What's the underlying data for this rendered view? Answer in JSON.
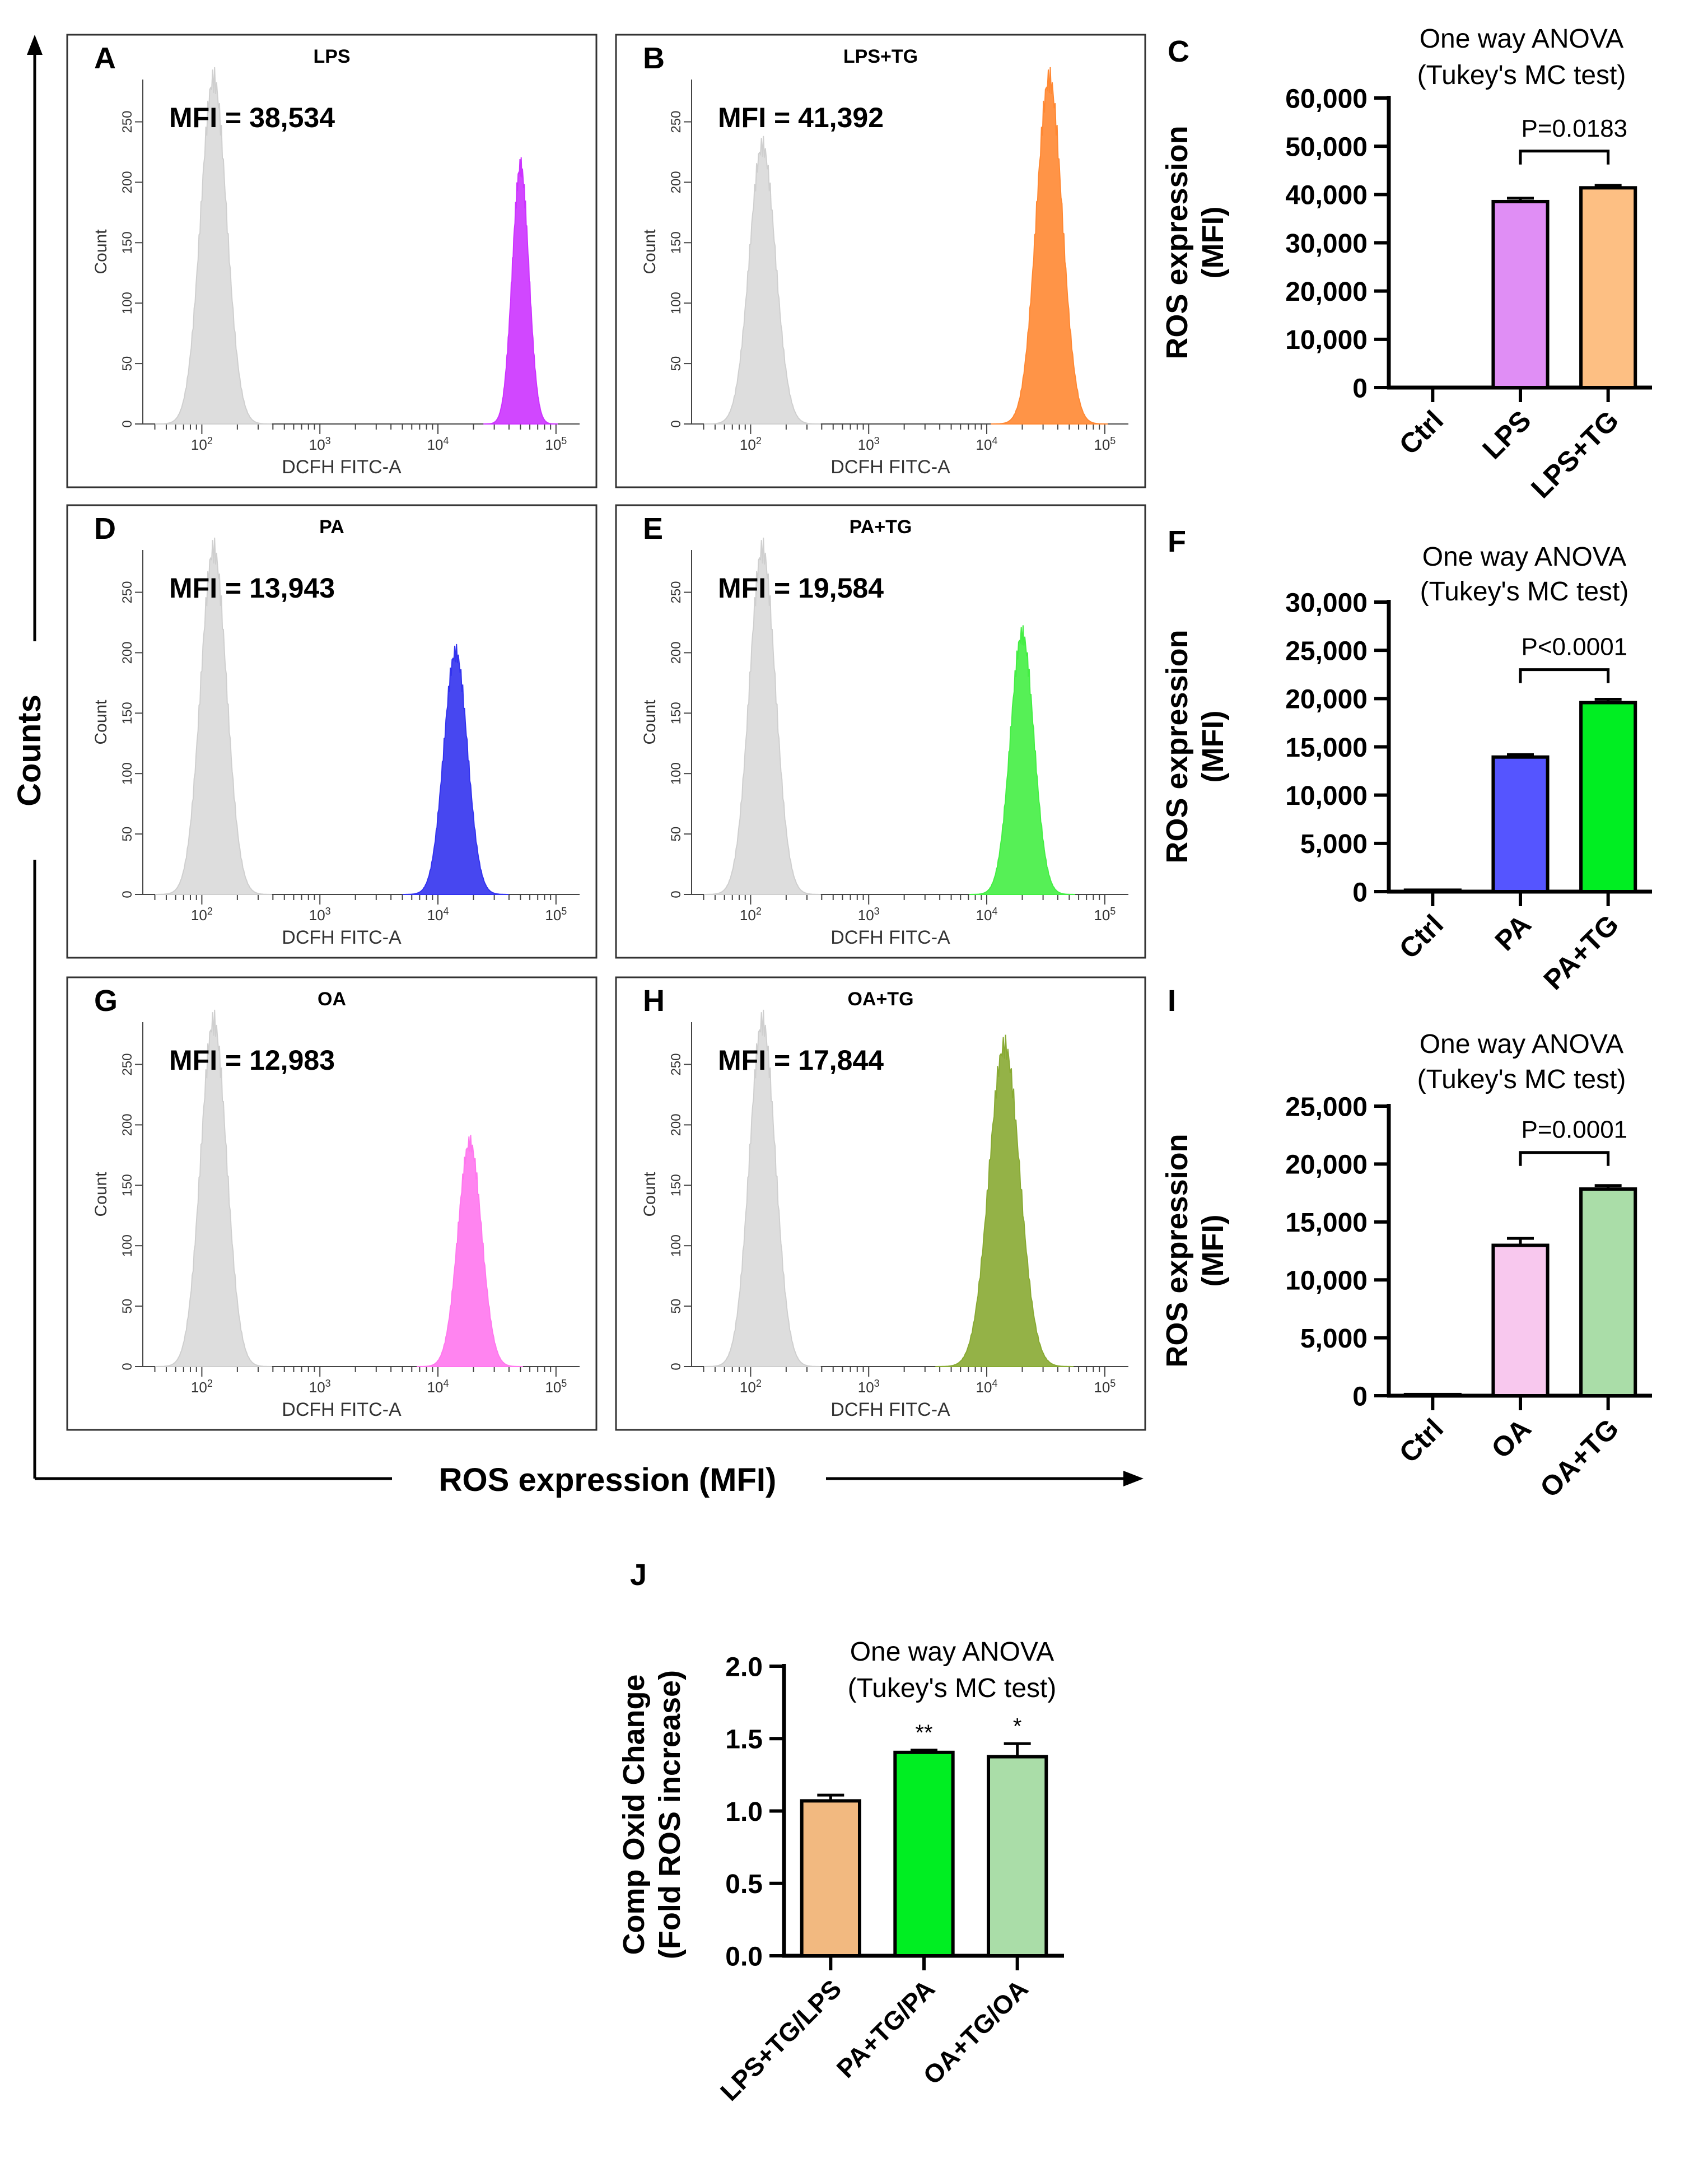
{
  "figure": {
    "counts_label": "Counts",
    "ros_label": "ROS expression (MFI)"
  },
  "chart_data": [
    {
      "id": "A",
      "type": "histogram",
      "panel_label": "A",
      "title": "LPS",
      "annotation": "MFI = 38,534",
      "xlabel": "DCFH FITC-A",
      "ylabel": "Count",
      "ylim": [
        0,
        285
      ],
      "yticks": [
        0,
        50,
        100,
        150,
        200,
        250
      ],
      "xlim_log10": [
        1.5,
        5.2
      ],
      "xticks_log10": [
        2,
        3,
        4,
        5
      ],
      "xtick_labels": [
        "10^2",
        "10^3",
        "10^4",
        "10^5"
      ],
      "control": {
        "peak_log10": 2.1,
        "peak_count": 285,
        "width": 0.11
      },
      "sample": {
        "peak_log10": 4.7,
        "peak_count": 213,
        "width": 0.07,
        "color": "#cc33ff"
      }
    },
    {
      "id": "B",
      "type": "histogram",
      "panel_label": "B",
      "title": "LPS+TG",
      "annotation": "MFI = 41,392",
      "xlabel": "DCFH FITC-A",
      "ylabel": "Count",
      "ylim": [
        0,
        285
      ],
      "yticks": [
        0,
        50,
        100,
        150,
        200,
        250
      ],
      "xlim_log10": [
        1.5,
        5.2
      ],
      "xticks_log10": [
        2,
        3,
        4,
        5
      ],
      "xtick_labels": [
        "10^2",
        "10^3",
        "10^4",
        "10^5"
      ],
      "control": {
        "peak_log10": 2.1,
        "peak_count": 230,
        "width": 0.11
      },
      "sample": {
        "peak_log10": 4.53,
        "peak_count": 285,
        "width": 0.11,
        "color": "#ff8833"
      }
    },
    {
      "id": "D",
      "type": "histogram",
      "panel_label": "D",
      "title": "PA",
      "annotation": "MFI = 13,943",
      "xlabel": "DCFH FITC-A",
      "ylabel": "Count",
      "ylim": [
        0,
        285
      ],
      "yticks": [
        0,
        50,
        100,
        150,
        200,
        250
      ],
      "xlim_log10": [
        1.5,
        5.2
      ],
      "xticks_log10": [
        2,
        3,
        4,
        5
      ],
      "xtick_labels": [
        "10^2",
        "10^3",
        "10^4",
        "10^5"
      ],
      "control": {
        "peak_log10": 2.1,
        "peak_count": 285,
        "width": 0.11
      },
      "sample": {
        "peak_log10": 4.15,
        "peak_count": 200,
        "width": 0.1,
        "color": "#3333ee"
      }
    },
    {
      "id": "E",
      "type": "histogram",
      "panel_label": "E",
      "title": "PA+TG",
      "annotation": "MFI = 19,584",
      "xlabel": "DCFH FITC-A",
      "ylabel": "Count",
      "ylim": [
        0,
        285
      ],
      "yticks": [
        0,
        50,
        100,
        150,
        200,
        250
      ],
      "xlim_log10": [
        1.5,
        5.2
      ],
      "xticks_log10": [
        2,
        3,
        4,
        5
      ],
      "xtick_labels": [
        "10^2",
        "10^3",
        "10^4",
        "10^5"
      ],
      "control": {
        "peak_log10": 2.1,
        "peak_count": 285,
        "width": 0.11
      },
      "sample": {
        "peak_log10": 4.3,
        "peak_count": 215,
        "width": 0.1,
        "color": "#44ee44"
      }
    },
    {
      "id": "G",
      "type": "histogram",
      "panel_label": "G",
      "title": "OA",
      "annotation": "MFI = 12,983",
      "xlabel": "DCFH FITC-A",
      "ylabel": "Count",
      "ylim": [
        0,
        285
      ],
      "yticks": [
        0,
        50,
        100,
        150,
        200,
        250
      ],
      "xlim_log10": [
        1.5,
        5.2
      ],
      "xticks_log10": [
        2,
        3,
        4,
        5
      ],
      "xtick_labels": [
        "10^2",
        "10^3",
        "10^4",
        "10^5"
      ],
      "control": {
        "peak_log10": 2.1,
        "peak_count": 285,
        "width": 0.11
      },
      "sample": {
        "peak_log10": 4.27,
        "peak_count": 185,
        "width": 0.1,
        "color": "#ff77ee"
      }
    },
    {
      "id": "H",
      "type": "histogram",
      "panel_label": "H",
      "title": "OA+TG",
      "annotation": "MFI = 17,844",
      "xlabel": "DCFH FITC-A",
      "ylabel": "Count",
      "ylim": [
        0,
        285
      ],
      "yticks": [
        0,
        50,
        100,
        150,
        200,
        250
      ],
      "xlim_log10": [
        1.5,
        5.2
      ],
      "xticks_log10": [
        2,
        3,
        4,
        5
      ],
      "xtick_labels": [
        "10^2",
        "10^3",
        "10^4",
        "10^5"
      ],
      "control": {
        "peak_log10": 2.1,
        "peak_count": 285,
        "width": 0.11
      },
      "sample": {
        "peak_log10": 4.15,
        "peak_count": 265,
        "width": 0.13,
        "color": "#88aa33"
      }
    },
    {
      "id": "C",
      "type": "bar",
      "panel_label": "C",
      "title_lines": [
        "One way ANOVA",
        "(Tukey's MC test)"
      ],
      "ylabel_lines": [
        "ROS expression",
        "(MFI)"
      ],
      "categories": [
        "Ctrl",
        "LPS",
        "LPS+TG"
      ],
      "values": [
        0,
        38534,
        41392
      ],
      "errors": [
        0,
        700,
        500
      ],
      "colors": [
        "#ffffff",
        "#e08ef5",
        "#fdbf83"
      ],
      "ylim": [
        0,
        60000
      ],
      "yticks": [
        0,
        10000,
        20000,
        30000,
        40000,
        50000,
        60000
      ],
      "ytick_labels": [
        "0",
        "10,000",
        "20,000",
        "30,000",
        "40,000",
        "50,000",
        "60,000"
      ],
      "significance": {
        "from": 1,
        "to": 2,
        "label": "P=0.0183",
        "level": 49000
      }
    },
    {
      "id": "F",
      "type": "bar",
      "panel_label": "F",
      "title_lines": [
        "One way ANOVA",
        "(Tukey's MC test)"
      ],
      "ylabel_lines": [
        "ROS expression",
        "(MFI)"
      ],
      "categories": [
        "Ctrl",
        "PA",
        "PA+TG"
      ],
      "values": [
        150,
        13943,
        19584
      ],
      "errors": [
        0,
        250,
        350
      ],
      "colors": [
        "#ffffff",
        "#5555ff",
        "#00ee22"
      ],
      "ylim": [
        0,
        30000
      ],
      "yticks": [
        0,
        5000,
        10000,
        15000,
        20000,
        25000,
        30000
      ],
      "ytick_labels": [
        "0",
        "5,000",
        "10,000",
        "15,000",
        "20,000",
        "25,000",
        "30,000"
      ],
      "significance": {
        "from": 1,
        "to": 2,
        "label": "P<0.0001",
        "level": 23000
      }
    },
    {
      "id": "I",
      "type": "bar",
      "panel_label": "I",
      "title_lines": [
        "One way ANOVA",
        "(Tukey's MC test)"
      ],
      "ylabel_lines": [
        "ROS expression",
        "(MFI)"
      ],
      "categories": [
        "Ctrl",
        "OA",
        "OA+TG"
      ],
      "values": [
        100,
        12983,
        17844
      ],
      "errors": [
        0,
        600,
        300
      ],
      "colors": [
        "#ffffff",
        "#f8c8ee",
        "#aadda8"
      ],
      "ylim": [
        0,
        25000
      ],
      "yticks": [
        0,
        5000,
        10000,
        15000,
        20000,
        25000
      ],
      "ytick_labels": [
        "0",
        "5,000",
        "10,000",
        "15,000",
        "20,000",
        "25,000"
      ],
      "significance": {
        "from": 1,
        "to": 2,
        "label": "P=0.0001",
        "level": 21000
      }
    },
    {
      "id": "J",
      "type": "bar",
      "panel_label": "J",
      "title_lines": [
        "One way ANOVA",
        "(Tukey's MC test)"
      ],
      "ylabel_lines": [
        "Comp Oxid Change",
        "(Fold ROS increase)"
      ],
      "categories": [
        "LPS+TG/LPS",
        "PA+TG/PA",
        "OA+TG/OA"
      ],
      "values": [
        1.07,
        1.405,
        1.375
      ],
      "errors": [
        0.04,
        0.015,
        0.09
      ],
      "colors": [
        "#f2b980",
        "#00ee22",
        "#aadda8"
      ],
      "ylim": [
        0,
        2.0
      ],
      "yticks": [
        0,
        0.5,
        1.0,
        1.5,
        2.0
      ],
      "ytick_labels": [
        "0.0",
        "0.5",
        "1.0",
        "1.5",
        "2.0"
      ],
      "bar_marks": [
        "",
        "**",
        "*"
      ]
    }
  ]
}
